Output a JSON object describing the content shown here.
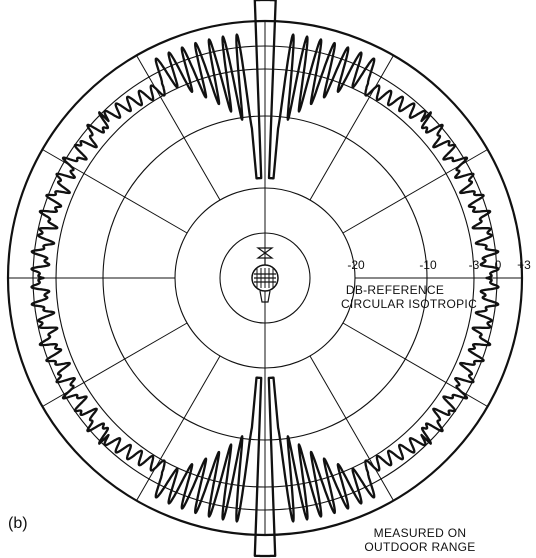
{
  "panel_label": "(b)",
  "scale": {
    "tick_labels": [
      "-20",
      "-10",
      "-3",
      "0",
      "+3"
    ],
    "ring_db": [
      -20,
      -10,
      -3,
      0,
      3
    ],
    "reference_line1": "DB-REFERENCE",
    "reference_line2": "CIRCULAR ISOTROPIC"
  },
  "note": {
    "line1": "MEASURED ON",
    "line2": "OUTDOOR RANGE"
  },
  "colors": {
    "ink": "#111111",
    "background": "#ffffff"
  }
}
